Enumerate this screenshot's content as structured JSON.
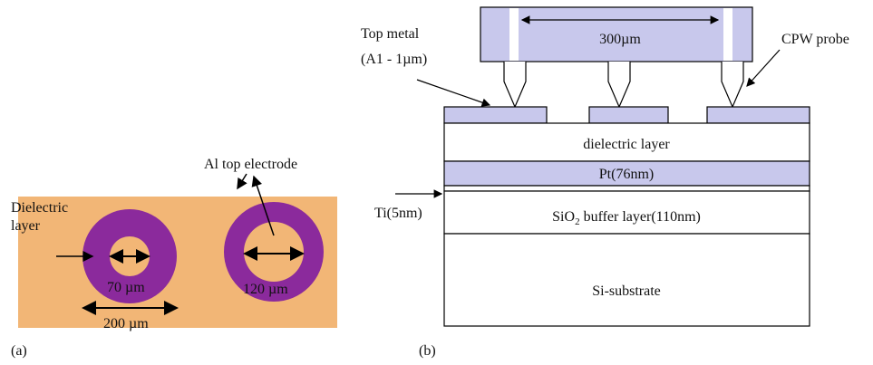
{
  "panel_a": {
    "electrode_label": "Al top electrode",
    "dielectric_label": [
      "Dielectric",
      "layer"
    ],
    "inner_diameter_1": "70 µm",
    "inner_diameter_2": "120 µm",
    "outer_diameter": "200 µm",
    "caption": "(a)"
  },
  "panel_b": {
    "top_metal_label": [
      "Top metal",
      "(A1 - 1µm)"
    ],
    "pitch_label": "300µm",
    "probe_label": "CPW probe",
    "layers": {
      "dielectric": "dielectric layer",
      "pt": "Pt(76nm)",
      "ti": "Ti(5nm)",
      "sio2": [
        "SiO",
        "2",
        " buffer layer(110nm)"
      ],
      "substrate": "Si-substrate"
    },
    "caption": "(b)"
  }
}
